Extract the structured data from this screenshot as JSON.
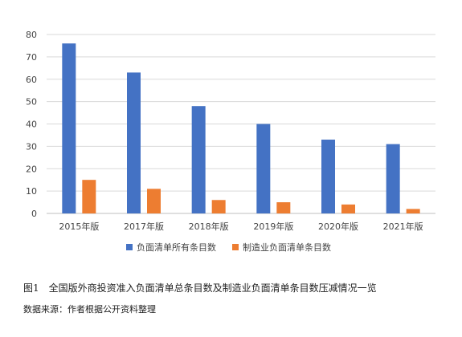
{
  "figure": {
    "caption": "图1　全国版外商投资准入负面清单总条目数及制造业负面清单条目数压减情况一览",
    "source": "数据来源：作者根据公开资料整理"
  },
  "chart_data": {
    "type": "bar",
    "categories": [
      "2015年版",
      "2017年版",
      "2018年版",
      "2019年版",
      "2020年版",
      "2021年版"
    ],
    "series": [
      {
        "name": "负面清单所有条目数",
        "values": [
          76,
          63,
          48,
          40,
          33,
          31
        ],
        "color": "#4472C4"
      },
      {
        "name": "制造业负面清单条目数",
        "values": [
          15,
          11,
          6,
          5,
          4,
          2
        ],
        "color": "#ED7D31"
      }
    ],
    "ylim": [
      0,
      80
    ],
    "yticks": [
      0,
      10,
      20,
      30,
      40,
      50,
      60,
      70,
      80
    ],
    "grid": true,
    "legend_position": "bottom"
  }
}
